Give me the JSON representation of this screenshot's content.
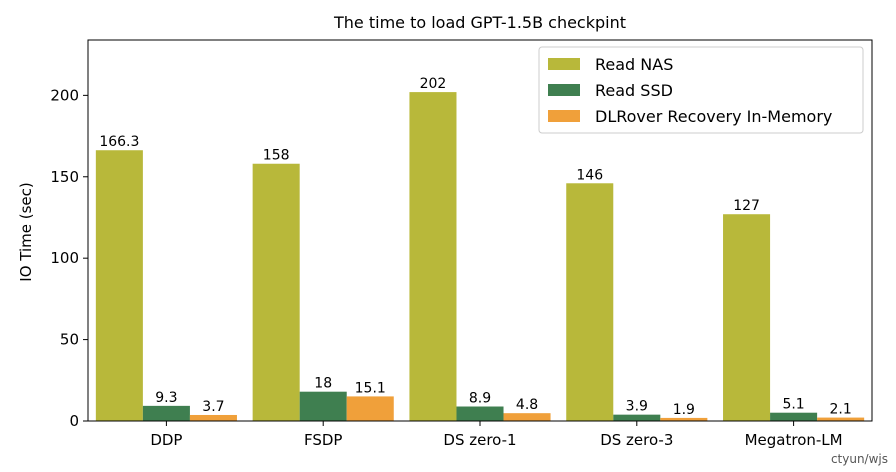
{
  "chart_data": {
    "type": "bar",
    "title": "The time to load GPT-1.5B checkpint",
    "xlabel": "",
    "ylabel": "IO Time (sec)",
    "ylim": [
      0,
      234
    ],
    "yticks": [
      0,
      50,
      100,
      150,
      200
    ],
    "grid": false,
    "legend_position": "top-right",
    "categories": [
      "DDP",
      "FSDP",
      "DS zero-1",
      "DS zero-3",
      "Megatron-LM"
    ],
    "series": [
      {
        "name": "Read NAS",
        "color": "#b8b83a",
        "values": [
          166.3,
          158,
          202,
          146,
          127
        ],
        "labels": [
          "166.3",
          "158",
          "202",
          "146",
          "127"
        ]
      },
      {
        "name": "Read SSD",
        "color": "#3f7f50",
        "values": [
          9.3,
          18,
          8.9,
          3.9,
          5.1
        ],
        "labels": [
          "9.3",
          "18",
          "8.9",
          "3.9",
          "5.1"
        ]
      },
      {
        "name": "DLRover Recovery In-Memory",
        "color": "#f0a03a",
        "values": [
          3.7,
          15.1,
          4.8,
          1.9,
          2.1
        ],
        "labels": [
          "3.7",
          "15.1",
          "4.8",
          "1.9",
          "2.1"
        ]
      }
    ]
  },
  "watermark": "ctyun/wjs"
}
